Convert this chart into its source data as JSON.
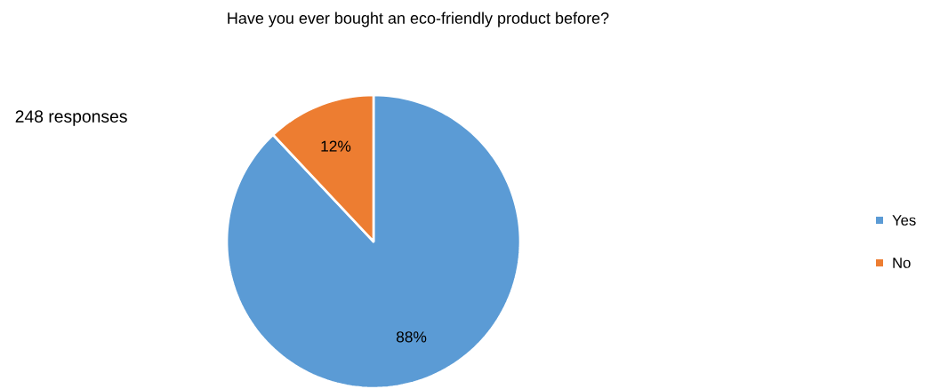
{
  "chart_data": {
    "type": "pie",
    "title": "Have you ever bought an eco-friendly product before?",
    "annotations": [
      "248 responses"
    ],
    "categories": [
      "Yes",
      "No"
    ],
    "values": [
      88,
      12
    ],
    "colors": [
      "#5b9bd5",
      "#ed7d31"
    ],
    "value_labels": [
      "88%",
      "12%"
    ],
    "legend": "right"
  }
}
